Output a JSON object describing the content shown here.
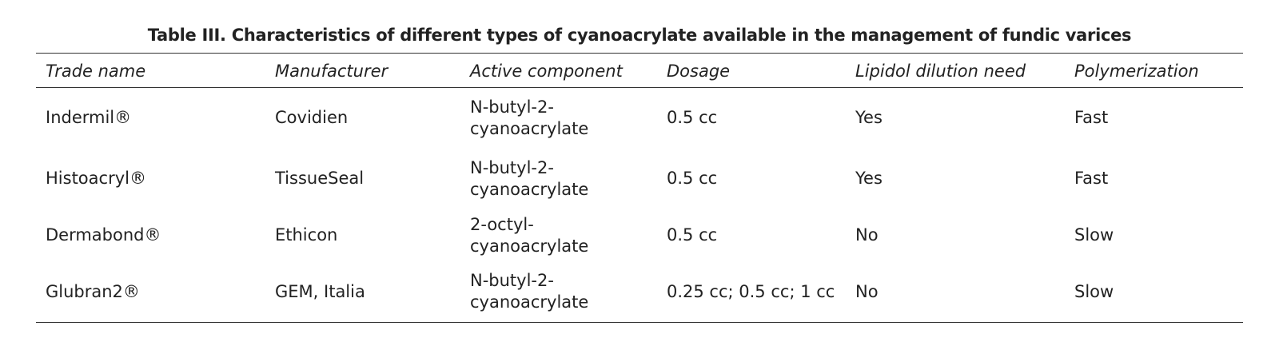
{
  "table": {
    "title": "Table III. Characteristics of different types of cyanoacrylate available in the management of fundic varices",
    "columns": [
      "Trade name",
      "Manufacturer",
      "Active component",
      "Dosage",
      "Lipidol dilution need",
      "Polymerization"
    ],
    "rows": [
      [
        "Indermil®",
        "Covidien",
        "N-butyl-2-cyanoacrylate",
        "0.5 cc",
        "Yes",
        "Fast"
      ],
      [
        "Histoacryl®",
        "TissueSeal",
        "N-butyl-2-cyanoacrylate",
        "0.5 cc",
        "Yes",
        "Fast"
      ],
      [
        "Dermabond®",
        "Ethicon",
        "2-octyl-cyanoacrylate",
        "0.5 cc",
        "No",
        "Slow"
      ],
      [
        "Glubran2®",
        "GEM, Italia",
        "N-butyl-2-cyanoacrylate",
        "0.25 cc; 0.5 cc; 1 cc",
        "No",
        "Slow"
      ]
    ]
  }
}
